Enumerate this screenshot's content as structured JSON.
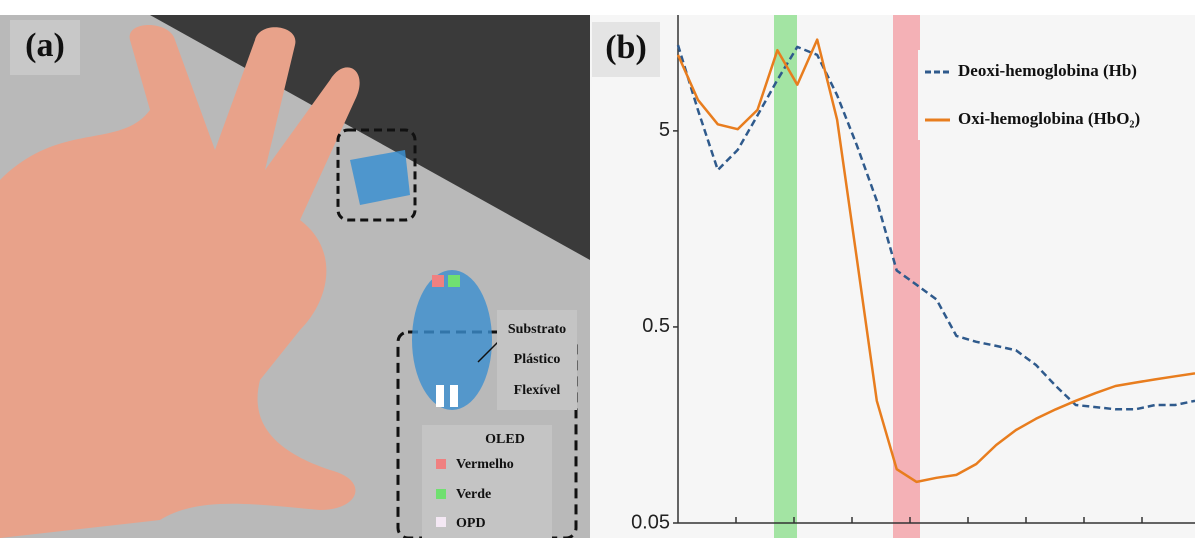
{
  "panel_a": {
    "label": "(a)",
    "substrate": [
      "Substrato",
      "Plástico",
      "Flexível"
    ],
    "legend_title": "OLED",
    "legend": [
      "Vermelho",
      "Verde",
      "OPD"
    ]
  },
  "chart_data": {
    "type": "line",
    "label": "(b)",
    "categories": [
      null,
      null,
      null,
      null,
      null,
      null,
      null,
      null,
      null,
      null,
      null,
      null,
      null,
      null,
      null,
      null,
      null,
      null,
      null,
      null,
      null,
      null,
      null,
      null,
      null,
      null,
      null
    ],
    "series": [
      {
        "name": "Deoxi-hemoglobina (Hb)",
        "color": "#2f5a8c",
        "dash": true,
        "values": [
          13.7,
          6.4,
          3.16,
          4.0,
          6.0,
          9.1,
          13.4,
          12.2,
          7.6,
          4.2,
          2.2,
          0.97,
          0.82,
          0.69,
          0.45,
          0.42,
          0.4,
          0.38,
          0.32,
          0.25,
          0.2,
          0.195,
          0.19,
          0.19,
          0.2,
          0.2,
          0.21
        ]
      },
      {
        "name": "Oxi-hemoglobina (HbO₂)",
        "color": "#e87d1e",
        "dash": false,
        "values": [
          12.2,
          7.2,
          5.4,
          5.1,
          6.4,
          12.9,
          8.6,
          14.6,
          5.7,
          1.1,
          0.21,
          0.094,
          0.081,
          0.085,
          0.088,
          0.1,
          0.125,
          0.149,
          0.17,
          0.19,
          0.21,
          0.23,
          0.25,
          0.26,
          0.27,
          0.28,
          0.29
        ]
      }
    ],
    "ylim": [
      0.05,
      19.5
    ],
    "yticks": [
      0.05,
      0.5,
      5
    ],
    "log_y": true
  }
}
